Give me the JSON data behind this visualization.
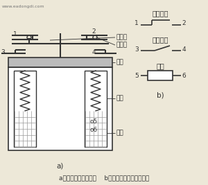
{
  "title": "a）继电器结构示意图    b）继电器组成的电路符号",
  "watermark": "www.eadongdi.com",
  "bg_color": "#ede8d8",
  "line_color": "#333333",
  "labels": {
    "dongjudian": "动触点",
    "jingjudian": "静触点",
    "yantie": "衔铁",
    "tiexin": "铁心",
    "xianjuan_body": "线圈",
    "changbi_title": "常闭触点",
    "changkai_title": "常开触点",
    "xianjuan_title": "线圈",
    "a_label": "a)",
    "b_label": "b)"
  }
}
